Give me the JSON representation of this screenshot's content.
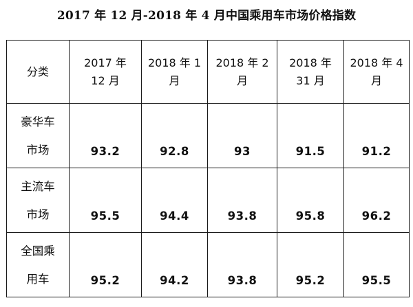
{
  "title": "2017 年 12 月-2018 年 4 月中国乘用车市场价格指数",
  "table": {
    "headers": [
      "分类",
      "2017 年\n12 月",
      "2018 年 1\n月",
      "2018 年 2\n月",
      "2018 年\n31 月",
      "2018 年 4\n月"
    ],
    "rows": [
      {
        "category": "豪华车\n市场",
        "values": [
          "93.2",
          "92.8",
          "93",
          "91.5",
          "91.2"
        ]
      },
      {
        "category": "主流车\n市场",
        "values": [
          "95.5",
          "94.4",
          "93.8",
          "95.8",
          "96.2"
        ]
      },
      {
        "category": "全国乘\n用车",
        "values": [
          "95.2",
          "94.2",
          "93.8",
          "95.2",
          "95.5"
        ]
      }
    ]
  }
}
